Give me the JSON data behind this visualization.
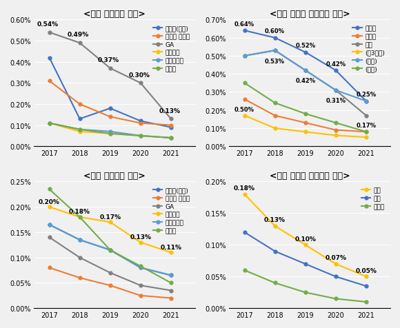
{
  "years": [
    2017,
    2018,
    2019,
    2020,
    2021
  ],
  "chart1": {
    "title": "<생보 불판비율 추이>",
    "ylim": [
      0,
      0.006
    ],
    "yticks": [
      0.0,
      0.001,
      0.002,
      0.003,
      0.004,
      0.005,
      0.006
    ],
    "ytick_labels": [
      "0.00%",
      "0.10%",
      "0.20%",
      "0.30%",
      "0.40%",
      "0.50%",
      "0.60%"
    ],
    "series": {
      "보험사(직판)": {
        "color": "#4472c4",
        "marker": "o",
        "data": [
          0.0042,
          0.0013,
          0.0018,
          0.0012,
          0.0009
        ]
      },
      "보험사 설계사": {
        "color": "#ed7d31",
        "marker": "o",
        "data": [
          0.0031,
          0.002,
          0.0014,
          0.0011,
          0.001
        ]
      },
      "GA": {
        "color": "#808080",
        "marker": "o",
        "data": [
          0.0054,
          0.0049,
          0.0037,
          0.003,
          0.0013
        ]
      },
      "금융기관": {
        "color": "#ffc000",
        "marker": "o",
        "data": [
          0.0011,
          0.0007,
          0.0006,
          0.0005,
          0.0004
        ]
      },
      "개인대리점": {
        "color": "#5b9bd5",
        "marker": "o",
        "data": [
          0.0011,
          0.0008,
          0.0007,
          0.0005,
          0.0004
        ]
      },
      "홈쇼핑": {
        "color": "#70ad47",
        "marker": "o",
        "data": [
          0.0011,
          0.0008,
          0.0006,
          0.0005,
          0.0004
        ]
      }
    },
    "annotations": {
      "GA": {
        "positions": [
          0,
          1,
          2,
          3,
          4
        ],
        "labels": [
          "0.54%",
          "0.49%",
          "0.37%",
          "0.30%",
          "0.13%"
        ]
      }
    }
  },
  "chart2": {
    "title": "<생보 상품별 불판비율 추이>",
    "ylim": [
      0,
      0.007
    ],
    "yticks": [
      0.0,
      0.001,
      0.002,
      0.003,
      0.004,
      0.005,
      0.006,
      0.007
    ],
    "ytick_labels": [
      "0.00%",
      "0.10%",
      "0.20%",
      "0.30%",
      "0.40%",
      "0.50%",
      "0.60%",
      "0.70%"
    ],
    "series": {
      "보장성": {
        "color": "#4472c4",
        "marker": "o",
        "data": [
          0.0064,
          0.006,
          0.0052,
          0.0042,
          0.0025
        ]
      },
      "저축성": {
        "color": "#ed7d31",
        "marker": "o",
        "data": [
          0.0026,
          0.0017,
          0.0013,
          0.0009,
          0.0008
        ]
      },
      "변액": {
        "color": "#808080",
        "marker": "o",
        "data": [
          0.005,
          0.0053,
          0.0042,
          0.0031,
          0.0017
        ]
      },
      "(제3보험)": {
        "color": "#ffc000",
        "marker": "o",
        "data": [
          0.0017,
          0.001,
          0.0008,
          0.0006,
          0.0005
        ]
      },
      "(중신)": {
        "color": "#5b9bd5",
        "marker": "o",
        "data": [
          0.005,
          0.0053,
          0.0042,
          0.0031,
          0.0025
        ]
      },
      "(연금)": {
        "color": "#70ad47",
        "marker": "o",
        "data": [
          0.0035,
          0.0024,
          0.0018,
          0.0013,
          0.0008
        ]
      }
    },
    "annotations": {
      "보장성": {
        "positions": [
          0,
          1,
          2,
          3,
          4
        ],
        "labels": [
          "0.64%",
          "0.60%",
          "0.52%",
          "0.42%",
          "0.25%"
        ]
      },
      "변액": {
        "positions": [
          1,
          2,
          3
        ],
        "labels": [
          "0.53%",
          "0.42%",
          "0.31%"
        ]
      },
      "저축성_2017": {
        "label": "0.50%"
      },
      "연금_2021": {
        "label": "0.17%"
      }
    }
  },
  "chart3": {
    "title": "<손보 불판비율 추이>",
    "ylim": [
      0,
      0.0025
    ],
    "yticks": [
      0.0,
      0.0005,
      0.001,
      0.0015,
      0.002,
      0.0025
    ],
    "ytick_labels": [
      "0.00%",
      "0.05%",
      "0.10%",
      "0.15%",
      "0.20%",
      "0.25%"
    ],
    "series": {
      "보험사(직판)": {
        "color": "#4472c4",
        "marker": "o",
        "data": [
          0.00165,
          0.00135,
          0.00115,
          0.0008,
          0.00065
        ]
      },
      "보험사 설계사": {
        "color": "#ed7d31",
        "marker": "o",
        "data": [
          0.0008,
          0.0006,
          0.00045,
          0.00025,
          0.0002
        ]
      },
      "GA": {
        "color": "#808080",
        "marker": "o",
        "data": [
          0.0014,
          0.001,
          0.0007,
          0.00045,
          0.00035
        ]
      },
      "금융기관": {
        "color": "#ffc000",
        "marker": "o",
        "data": [
          0.002,
          0.0018,
          0.0017,
          0.0013,
          0.0011
        ]
      },
      "개인대리점": {
        "color": "#5b9bd5",
        "marker": "o",
        "data": [
          0.00165,
          0.00135,
          0.00115,
          0.0008,
          0.00065
        ]
      },
      "홈쇼핑": {
        "color": "#70ad47",
        "marker": "o",
        "data": [
          0.00235,
          0.0018,
          0.00115,
          0.00083,
          0.0005
        ]
      }
    },
    "annotations": {
      "금융기관": {
        "positions": [
          0,
          1,
          2,
          3,
          4
        ],
        "labels": [
          "0.20%",
          "0.18%",
          "0.17%",
          "0.13%",
          "0.11%"
        ]
      }
    }
  },
  "chart4": {
    "title": "<손보 상품별 불판비율 추이>",
    "ylim": [
      0,
      0.002
    ],
    "yticks": [
      0.0,
      0.0005,
      0.001,
      0.0015,
      0.002
    ],
    "ytick_labels": [
      "0.00%",
      "0.05%",
      "0.10%",
      "0.15%",
      "0.20%"
    ],
    "series": {
      "질병": {
        "color": "#ffc000",
        "marker": "o",
        "data": [
          0.0018,
          0.0013,
          0.001,
          0.0007,
          0.0005
        ]
      },
      "상해": {
        "color": "#4472c4",
        "marker": "o",
        "data": [
          0.0012,
          0.0009,
          0.0007,
          0.0005,
          0.00035
        ]
      },
      "운전자": {
        "color": "#70ad47",
        "marker": "o",
        "data": [
          0.0006,
          0.0004,
          0.00025,
          0.00015,
          0.0001
        ]
      }
    },
    "annotations": {
      "질병": {
        "positions": [
          0,
          1,
          2,
          3,
          4
        ],
        "labels": [
          "0.18%",
          "0.13%",
          "0.10%",
          "0.07%",
          "0.05%"
        ]
      }
    }
  }
}
